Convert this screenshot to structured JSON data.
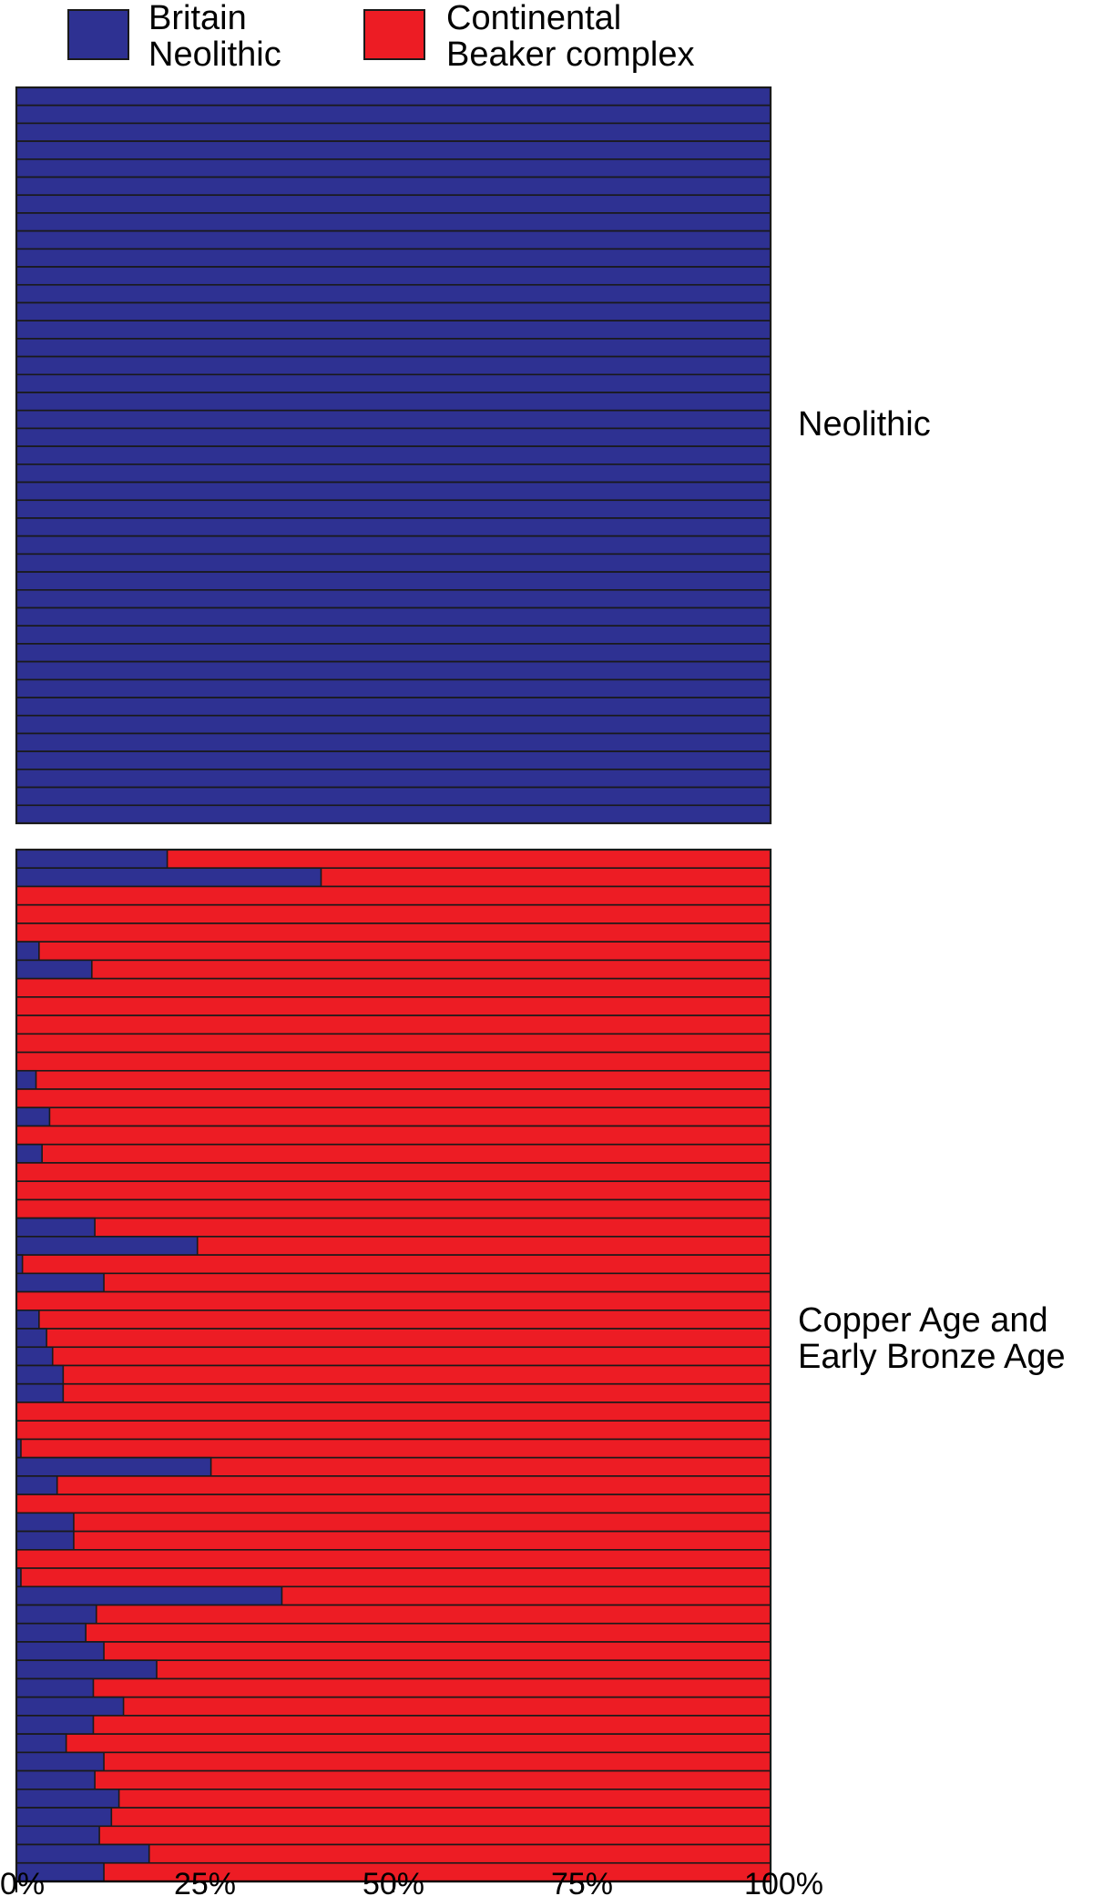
{
  "chart_data": {
    "type": "bar",
    "orientation": "horizontal",
    "stacked": "percent",
    "xlim": [
      0,
      100
    ],
    "x_ticks": [
      "0%",
      "25%",
      "50%",
      "75%",
      "100%"
    ],
    "legend": {
      "position": "top-left",
      "items": [
        {
          "label_lines": [
            "Britain",
            "Neolithic"
          ],
          "color": "#2E3192"
        },
        {
          "label_lines": [
            "Continental",
            "Beaker complex"
          ],
          "color": "#ED1C24"
        }
      ]
    },
    "colors": {
      "britain_neolithic": "#2E3192",
      "continental_beaker": "#ED1C24",
      "outline": "#1a1a1a"
    },
    "groups": [
      {
        "label_lines": [
          "Neolithic"
        ],
        "britain_neolithic_pct": [
          100,
          100,
          100,
          100,
          100,
          100,
          100,
          100,
          100,
          100,
          100,
          100,
          100,
          100,
          100,
          100,
          100,
          100,
          100,
          100,
          100,
          100,
          100,
          100,
          100,
          100,
          100,
          100,
          100,
          100,
          100,
          100,
          100,
          100,
          100,
          100,
          100,
          100,
          100,
          100,
          100
        ]
      },
      {
        "label_lines": [
          "Copper Age and",
          "Early Bronze Age"
        ],
        "britain_neolithic_pct": [
          20,
          40.4,
          0,
          0,
          0,
          3,
          10,
          0,
          0,
          0,
          0,
          0,
          2.6,
          0,
          4.4,
          0,
          3.4,
          0,
          0,
          0,
          10.4,
          24,
          0.8,
          11.6,
          0,
          3,
          4,
          4.8,
          6.2,
          6.2,
          0,
          0,
          0.6,
          25.8,
          5.4,
          0,
          7.6,
          7.6,
          0,
          0.6,
          35.2,
          10.6,
          9.2,
          11.6,
          18.6,
          10.2,
          14.2,
          10.2,
          6.6,
          11.6,
          10.4,
          13.6,
          12.6,
          11,
          17.6,
          11.6
        ]
      }
    ]
  }
}
